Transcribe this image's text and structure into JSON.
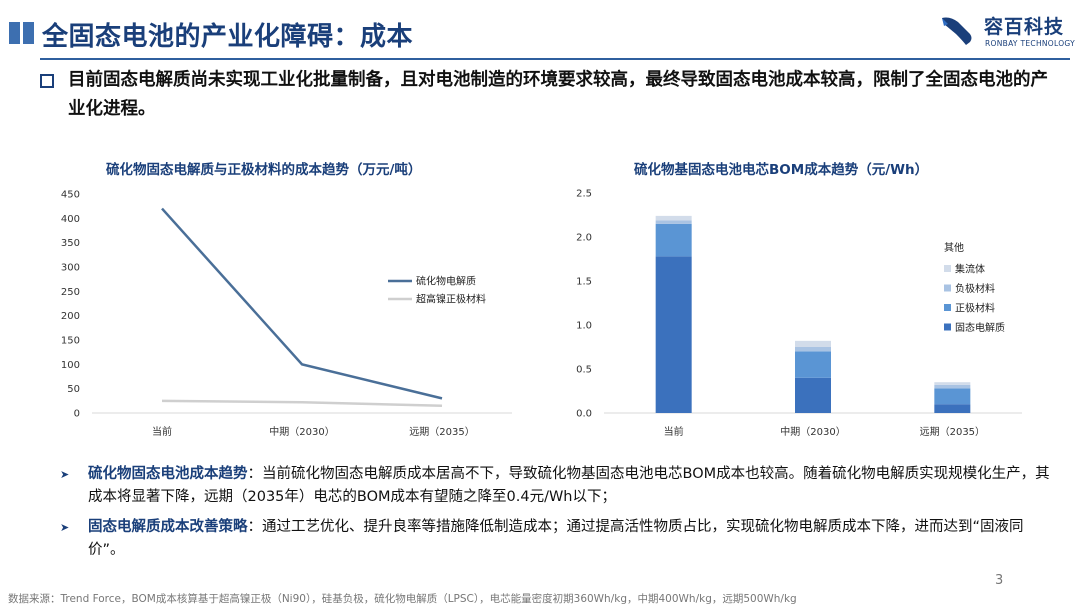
{
  "header": {
    "title": "全固态电池的产业化障碍：成本",
    "logo_cn": "容百科技",
    "logo_en": "RONBAY TECHNOLOGY",
    "accent_color": "#1a3f7a"
  },
  "lead": {
    "text": "目前固态电解质尚未实现工业化批量制备，且对电池制造的环境要求较高，最终导致固态电池成本较高，限制了全固态电池的产业化进程。"
  },
  "chart_data": [
    {
      "type": "line",
      "title": "硫化物固态电解质与正极材料的成本趋势（万元/吨）",
      "categories": [
        "当前",
        "中期（2030）",
        "远期（2035）"
      ],
      "y_ticks": [
        "0",
        "50",
        "100",
        "150",
        "200",
        "250",
        "300",
        "350",
        "400",
        "450"
      ],
      "ylim": [
        0,
        450
      ],
      "legend_position": "right",
      "series": [
        {
          "name": "硫化物电解质",
          "values": [
            420,
            100,
            30
          ],
          "color": "#4a6f98"
        },
        {
          "name": "超高镍正极材料",
          "values": [
            25,
            22,
            15
          ],
          "color": "#cfcfcf"
        }
      ]
    },
    {
      "type": "bar",
      "stacked": true,
      "title": "硫化物基固态电池电芯BOM成本趋势（元/Wh）",
      "categories": [
        "当前",
        "中期（2030）",
        "远期（2035）"
      ],
      "y_ticks": [
        "0.0",
        "0.5",
        "1.0",
        "1.5",
        "2.0",
        "2.5"
      ],
      "ylim": [
        0,
        2.5
      ],
      "legend_title": "其他",
      "legend_position": "right",
      "series": [
        {
          "name": "固态电解质",
          "values": [
            1.78,
            0.4,
            0.1
          ],
          "color": "#3b71bd"
        },
        {
          "name": "正极材料",
          "values": [
            0.37,
            0.3,
            0.18
          ],
          "color": "#5a95d4"
        },
        {
          "name": "负极材料",
          "values": [
            0.04,
            0.05,
            0.04
          ],
          "color": "#a9c3e3"
        },
        {
          "name": "集流体",
          "values": [
            0.05,
            0.07,
            0.03
          ],
          "color": "#d2dcea"
        }
      ]
    }
  ],
  "notes": [
    {
      "label": "硫化物固态电池成本趋势",
      "text": "：当前硫化物固态电解质成本居高不下，导致硫化物基固态电池电芯BOM成本也较高。随着硫化物电解质实现规模化生产，其成本将显著下降，远期（2035年）电芯的BOM成本有望随之降至0.4元/Wh以下；"
    },
    {
      "label": "固态电解质成本改善策略",
      "text": "：通过工艺优化、提升良率等措施降低制造成本；通过提高活性物质占比，实现硫化物电解质成本下降，进而达到“固液同价”。"
    }
  ],
  "footer": {
    "source": "数据来源：Trend Force，BOM成本核算基于超高镍正极（Ni90），硅基负极，硫化物电解质（LPSC），电芯能量密度初期360Wh/kg，中期400Wh/kg，远期500Wh/kg",
    "page_number": "3"
  }
}
